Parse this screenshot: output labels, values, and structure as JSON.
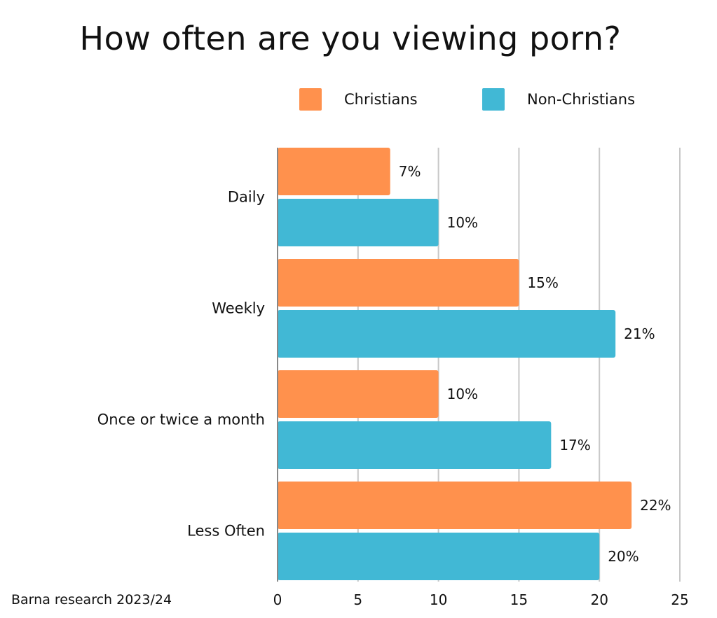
{
  "chart_data": {
    "type": "bar",
    "orientation": "horizontal",
    "title": "How often are you viewing porn?",
    "categories": [
      "Daily",
      "Weekly",
      "Once or twice a month",
      "Less Often"
    ],
    "series": [
      {
        "name": "Christians",
        "color": "#FF914D",
        "values": [
          7,
          15,
          10,
          22
        ],
        "labels": [
          "7%",
          "15%",
          "10%",
          "22%"
        ]
      },
      {
        "name": "Non-Christians",
        "color": "#41B8D5",
        "values": [
          10,
          21,
          17,
          20
        ],
        "labels": [
          "10%",
          "21%",
          "17%",
          "20%"
        ]
      }
    ],
    "xlim": [
      0,
      25
    ],
    "xticks": [
      0,
      5,
      10,
      15,
      20,
      25
    ],
    "xlabel": "",
    "ylabel": "",
    "grid": true,
    "legend_position": "top-right"
  },
  "source": "Barna research 2023/24",
  "colors": {
    "grid": "#C8C8C8",
    "axis": "#888888"
  }
}
